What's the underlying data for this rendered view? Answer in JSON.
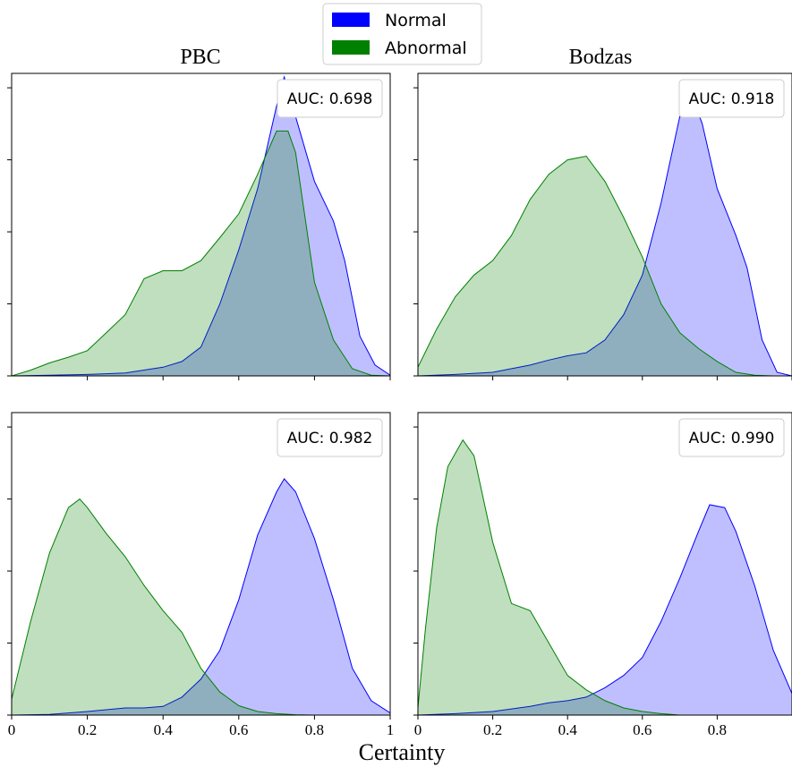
{
  "legend": {
    "placement": "top-center",
    "items": [
      {
        "label": "Normal",
        "color": "#0000ff"
      },
      {
        "label": "Abnormal",
        "color": "#008000"
      }
    ]
  },
  "column_titles": [
    "PBC",
    "Bodzas"
  ],
  "shared_xlabel": "Certainty",
  "colors": {
    "normal_fill": "#0000ff",
    "abnormal_fill": "#008000",
    "overlap_fill": "#4f7f8f"
  },
  "chart_data": [
    {
      "type": "area",
      "title": "PBC",
      "annotation": "AUC: 0.698",
      "xlim": [
        0,
        1
      ],
      "ylim": [
        0,
        4.2
      ],
      "xticks": [],
      "xticklabels": [],
      "grid": false,
      "series": [
        {
          "name": "Normal",
          "x": [
            0,
            0.1,
            0.2,
            0.3,
            0.4,
            0.45,
            0.5,
            0.55,
            0.6,
            0.65,
            0.7,
            0.72,
            0.75,
            0.8,
            0.85,
            0.88,
            0.92,
            0.96,
            1.0
          ],
          "y": [
            0,
            0.01,
            0.02,
            0.04,
            0.12,
            0.2,
            0.4,
            1.0,
            1.75,
            2.6,
            3.75,
            4.15,
            3.6,
            2.7,
            2.15,
            1.6,
            0.55,
            0.15,
            0.01
          ]
        },
        {
          "name": "Abnormal",
          "x": [
            0,
            0.05,
            0.1,
            0.15,
            0.2,
            0.25,
            0.3,
            0.35,
            0.4,
            0.45,
            0.5,
            0.55,
            0.6,
            0.65,
            0.7,
            0.73,
            0.75,
            0.8,
            0.85,
            0.9,
            0.95,
            1.0
          ],
          "y": [
            0,
            0.08,
            0.18,
            0.26,
            0.35,
            0.6,
            0.85,
            1.35,
            1.46,
            1.46,
            1.6,
            1.92,
            2.25,
            2.8,
            3.4,
            3.4,
            3.1,
            1.3,
            0.5,
            0.1,
            0.01,
            0
          ]
        }
      ]
    },
    {
      "type": "area",
      "title": "Bodzas",
      "annotation": "AUC: 0.918",
      "xlim": [
        0,
        1
      ],
      "ylim": [
        0,
        4.2
      ],
      "xticks": [],
      "xticklabels": [],
      "grid": false,
      "series": [
        {
          "name": "Normal",
          "x": [
            0,
            0.1,
            0.2,
            0.3,
            0.35,
            0.4,
            0.45,
            0.5,
            0.55,
            0.6,
            0.65,
            0.7,
            0.73,
            0.76,
            0.8,
            0.85,
            0.88,
            0.92,
            0.96,
            1.0
          ],
          "y": [
            0,
            0.02,
            0.05,
            0.15,
            0.22,
            0.28,
            0.32,
            0.5,
            0.85,
            1.4,
            2.4,
            3.6,
            3.92,
            3.5,
            2.6,
            1.95,
            1.5,
            0.5,
            0.05,
            0
          ]
        },
        {
          "name": "Abnormal",
          "x": [
            0,
            0.05,
            0.1,
            0.15,
            0.2,
            0.25,
            0.3,
            0.35,
            0.4,
            0.45,
            0.5,
            0.55,
            0.6,
            0.65,
            0.7,
            0.75,
            0.8,
            0.85,
            0.9,
            0.95
          ],
          "y": [
            0.12,
            0.65,
            1.1,
            1.4,
            1.6,
            1.95,
            2.45,
            2.8,
            3.0,
            3.05,
            2.7,
            2.2,
            1.65,
            1.0,
            0.6,
            0.38,
            0.2,
            0.05,
            0.01,
            0
          ]
        }
      ]
    },
    {
      "type": "area",
      "annotation": "AUC: 0.982",
      "xlim": [
        0,
        1
      ],
      "ylim": [
        0,
        4.2
      ],
      "xticks": [
        0,
        0.2,
        0.4,
        0.6,
        0.8,
        1.0
      ],
      "xticklabels": [
        "0",
        "0.2",
        "0.4",
        "0.6",
        "0.8",
        "1"
      ],
      "grid": false,
      "series": [
        {
          "name": "Normal",
          "x": [
            0,
            0.1,
            0.2,
            0.3,
            0.35,
            0.4,
            0.45,
            0.5,
            0.55,
            0.6,
            0.65,
            0.7,
            0.72,
            0.75,
            0.8,
            0.85,
            0.9,
            0.95,
            1.0
          ],
          "y": [
            0,
            0.01,
            0.05,
            0.1,
            0.1,
            0.12,
            0.25,
            0.5,
            0.9,
            1.6,
            2.5,
            3.1,
            3.28,
            3.1,
            2.45,
            1.6,
            0.65,
            0.2,
            0.03
          ]
        },
        {
          "name": "Abnormal",
          "x": [
            0,
            0.05,
            0.1,
            0.15,
            0.18,
            0.2,
            0.25,
            0.3,
            0.35,
            0.4,
            0.45,
            0.5,
            0.55,
            0.6,
            0.65,
            0.7,
            0.75,
            0.8
          ],
          "y": [
            0.22,
            1.3,
            2.25,
            2.88,
            3.0,
            2.88,
            2.52,
            2.2,
            1.8,
            1.45,
            1.15,
            0.65,
            0.32,
            0.13,
            0.05,
            0.02,
            0.005,
            0
          ]
        }
      ]
    },
    {
      "type": "area",
      "annotation": "AUC: 0.990",
      "xlim": [
        0,
        1
      ],
      "ylim": [
        0,
        4.2
      ],
      "xticks": [
        0,
        0.2,
        0.4,
        0.6,
        0.8
      ],
      "xticklabels": [
        "0",
        "0.2",
        "0.4",
        "0.6",
        "0.8"
      ],
      "grid": false,
      "series": [
        {
          "name": "Normal",
          "x": [
            0,
            0.1,
            0.2,
            0.3,
            0.35,
            0.4,
            0.45,
            0.5,
            0.55,
            0.6,
            0.65,
            0.7,
            0.75,
            0.78,
            0.82,
            0.85,
            0.9,
            0.95,
            1.0
          ],
          "y": [
            0,
            0.02,
            0.05,
            0.12,
            0.17,
            0.2,
            0.25,
            0.38,
            0.55,
            0.8,
            1.3,
            1.9,
            2.55,
            2.92,
            2.88,
            2.55,
            1.8,
            0.9,
            0.3
          ]
        },
        {
          "name": "Abnormal",
          "x": [
            0,
            0.02,
            0.05,
            0.08,
            0.12,
            0.15,
            0.2,
            0.25,
            0.3,
            0.35,
            0.4,
            0.45,
            0.5,
            0.55,
            0.6,
            0.65,
            0.7
          ],
          "y": [
            0.1,
            1.2,
            2.6,
            3.45,
            3.82,
            3.6,
            2.4,
            1.55,
            1.45,
            1.0,
            0.55,
            0.35,
            0.2,
            0.1,
            0.05,
            0.02,
            0
          ]
        }
      ]
    }
  ]
}
